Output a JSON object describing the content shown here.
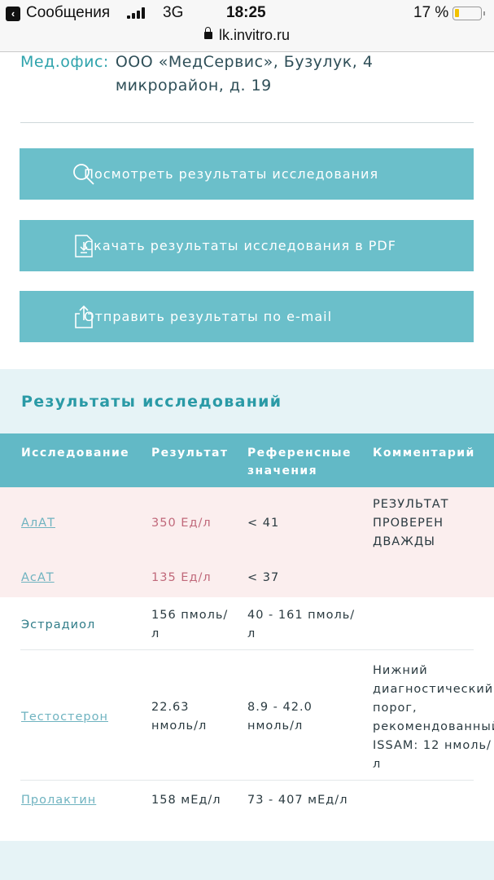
{
  "status_bar": {
    "back_label": "Сообщения",
    "network": "3G",
    "time": "18:25",
    "battery": "17 %",
    "battery_level": 0.17,
    "url": "lk.invitro.ru"
  },
  "office": {
    "label": "Мед.офис:",
    "value": "ООО «МедСервис», Бузулук, 4 микрорайон, д. 19"
  },
  "buttons": [
    {
      "label": "Посмотреть результаты исследования",
      "icon": "search-icon"
    },
    {
      "label": "Скачать результаты исследования в PDF",
      "icon": "pdf-download-icon"
    },
    {
      "label": "Отправить результаты по e-mail",
      "icon": "share-icon"
    }
  ],
  "results": {
    "title": "Результаты исследований",
    "headers": {
      "test": "Исследование",
      "result": "Результат",
      "ref1": "Референсные",
      "ref2": "значения",
      "comment": "Комментарий"
    },
    "rows": [
      {
        "test": "АлАТ",
        "result": "350 Ед/л",
        "ref": "< 41",
        "comment": [
          "РЕЗУЛЬТАТ",
          "ПРОВЕРЕН",
          "ДВАЖДЫ"
        ],
        "abnormal": true
      },
      {
        "test": "АсАТ",
        "result": "135 Ед/л",
        "ref": "< 37",
        "abnormal": true
      },
      {
        "test": "Эстрадиол",
        "result": [
          "156 пмоль/",
          "л"
        ],
        "ref": [
          "40 - 161 пмоль/",
          "л"
        ]
      },
      {
        "test": "Тестостерон",
        "result": [
          "22.63",
          "нмоль/л"
        ],
        "ref": [
          "8.9 - 42.0",
          "нмоль/л"
        ],
        "comment": [
          "Нижний",
          "диагностический",
          "порог,",
          "рекомендованный",
          "ISSAM: 12 нмоль/",
          "л"
        ]
      },
      {
        "test": "Пролактин",
        "result": "158 мЕд/л",
        "ref": "73 - 407 мЕд/л"
      }
    ]
  },
  "colors": {
    "accent": "#6bbfca",
    "header": "#62b9c6",
    "title": "#2a9aa6",
    "abnormal_bg": "#fbeeee",
    "abnormal_text": "#c0687a"
  }
}
